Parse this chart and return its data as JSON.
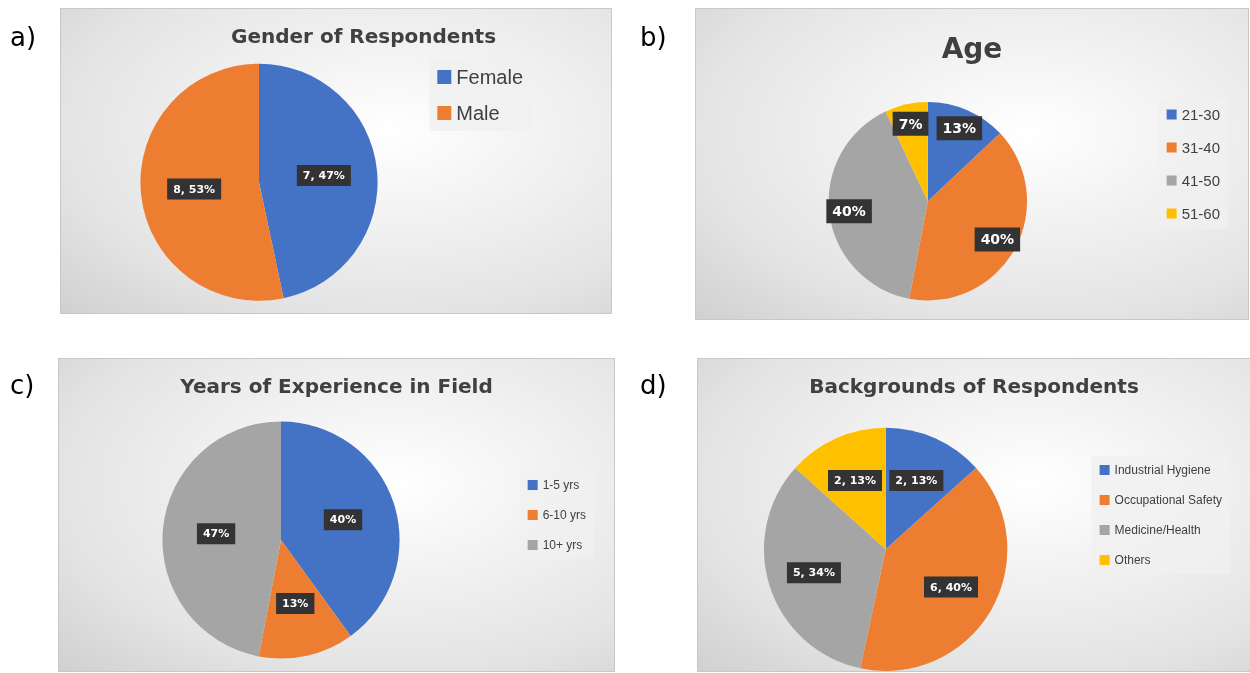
{
  "chart_data": [
    {
      "type": "pie",
      "title": "Gender of Respondents",
      "annotations": [
        "a)"
      ],
      "categories": [
        "Female",
        "Male"
      ],
      "values": [
        7,
        8
      ],
      "colors": [
        "#4472c4",
        "#ed7d31"
      ],
      "value_labels": [
        "7, 47%",
        "8, 53%"
      ],
      "legend": "right"
    },
    {
      "type": "pie",
      "title": "Age",
      "annotations": [
        "b)"
      ],
      "categories": [
        "21-30",
        "31-40",
        "41-50",
        "51-60"
      ],
      "values": [
        13,
        40,
        40,
        7
      ],
      "colors": [
        "#4472c4",
        "#ed7d31",
        "#a5a5a5",
        "#ffc000"
      ],
      "value_labels": [
        "13%",
        "40%",
        "40%",
        "7%"
      ],
      "legend": "right"
    },
    {
      "type": "pie",
      "title": "Years of Experience in Field",
      "annotations": [
        "c)"
      ],
      "categories": [
        "1-5 yrs",
        "6-10 yrs",
        "10+ yrs"
      ],
      "values": [
        40,
        13,
        47
      ],
      "colors": [
        "#4472c4",
        "#ed7d31",
        "#a5a5a5"
      ],
      "value_labels": [
        "40%",
        "13%",
        "47%"
      ],
      "legend": "right"
    },
    {
      "type": "pie",
      "title": "Backgrounds of Respondents",
      "annotations": [
        "d)"
      ],
      "categories": [
        "Industrial Hygiene",
        "Occupational Safety",
        "Medicine/Health",
        "Others"
      ],
      "values": [
        2,
        6,
        5,
        2
      ],
      "colors": [
        "#4472c4",
        "#ed7d31",
        "#a5a5a5",
        "#ffc000"
      ],
      "value_labels": [
        "2, 13%",
        "6, 40%",
        "5, 34%",
        "2, 13%"
      ],
      "legend": "right"
    }
  ]
}
